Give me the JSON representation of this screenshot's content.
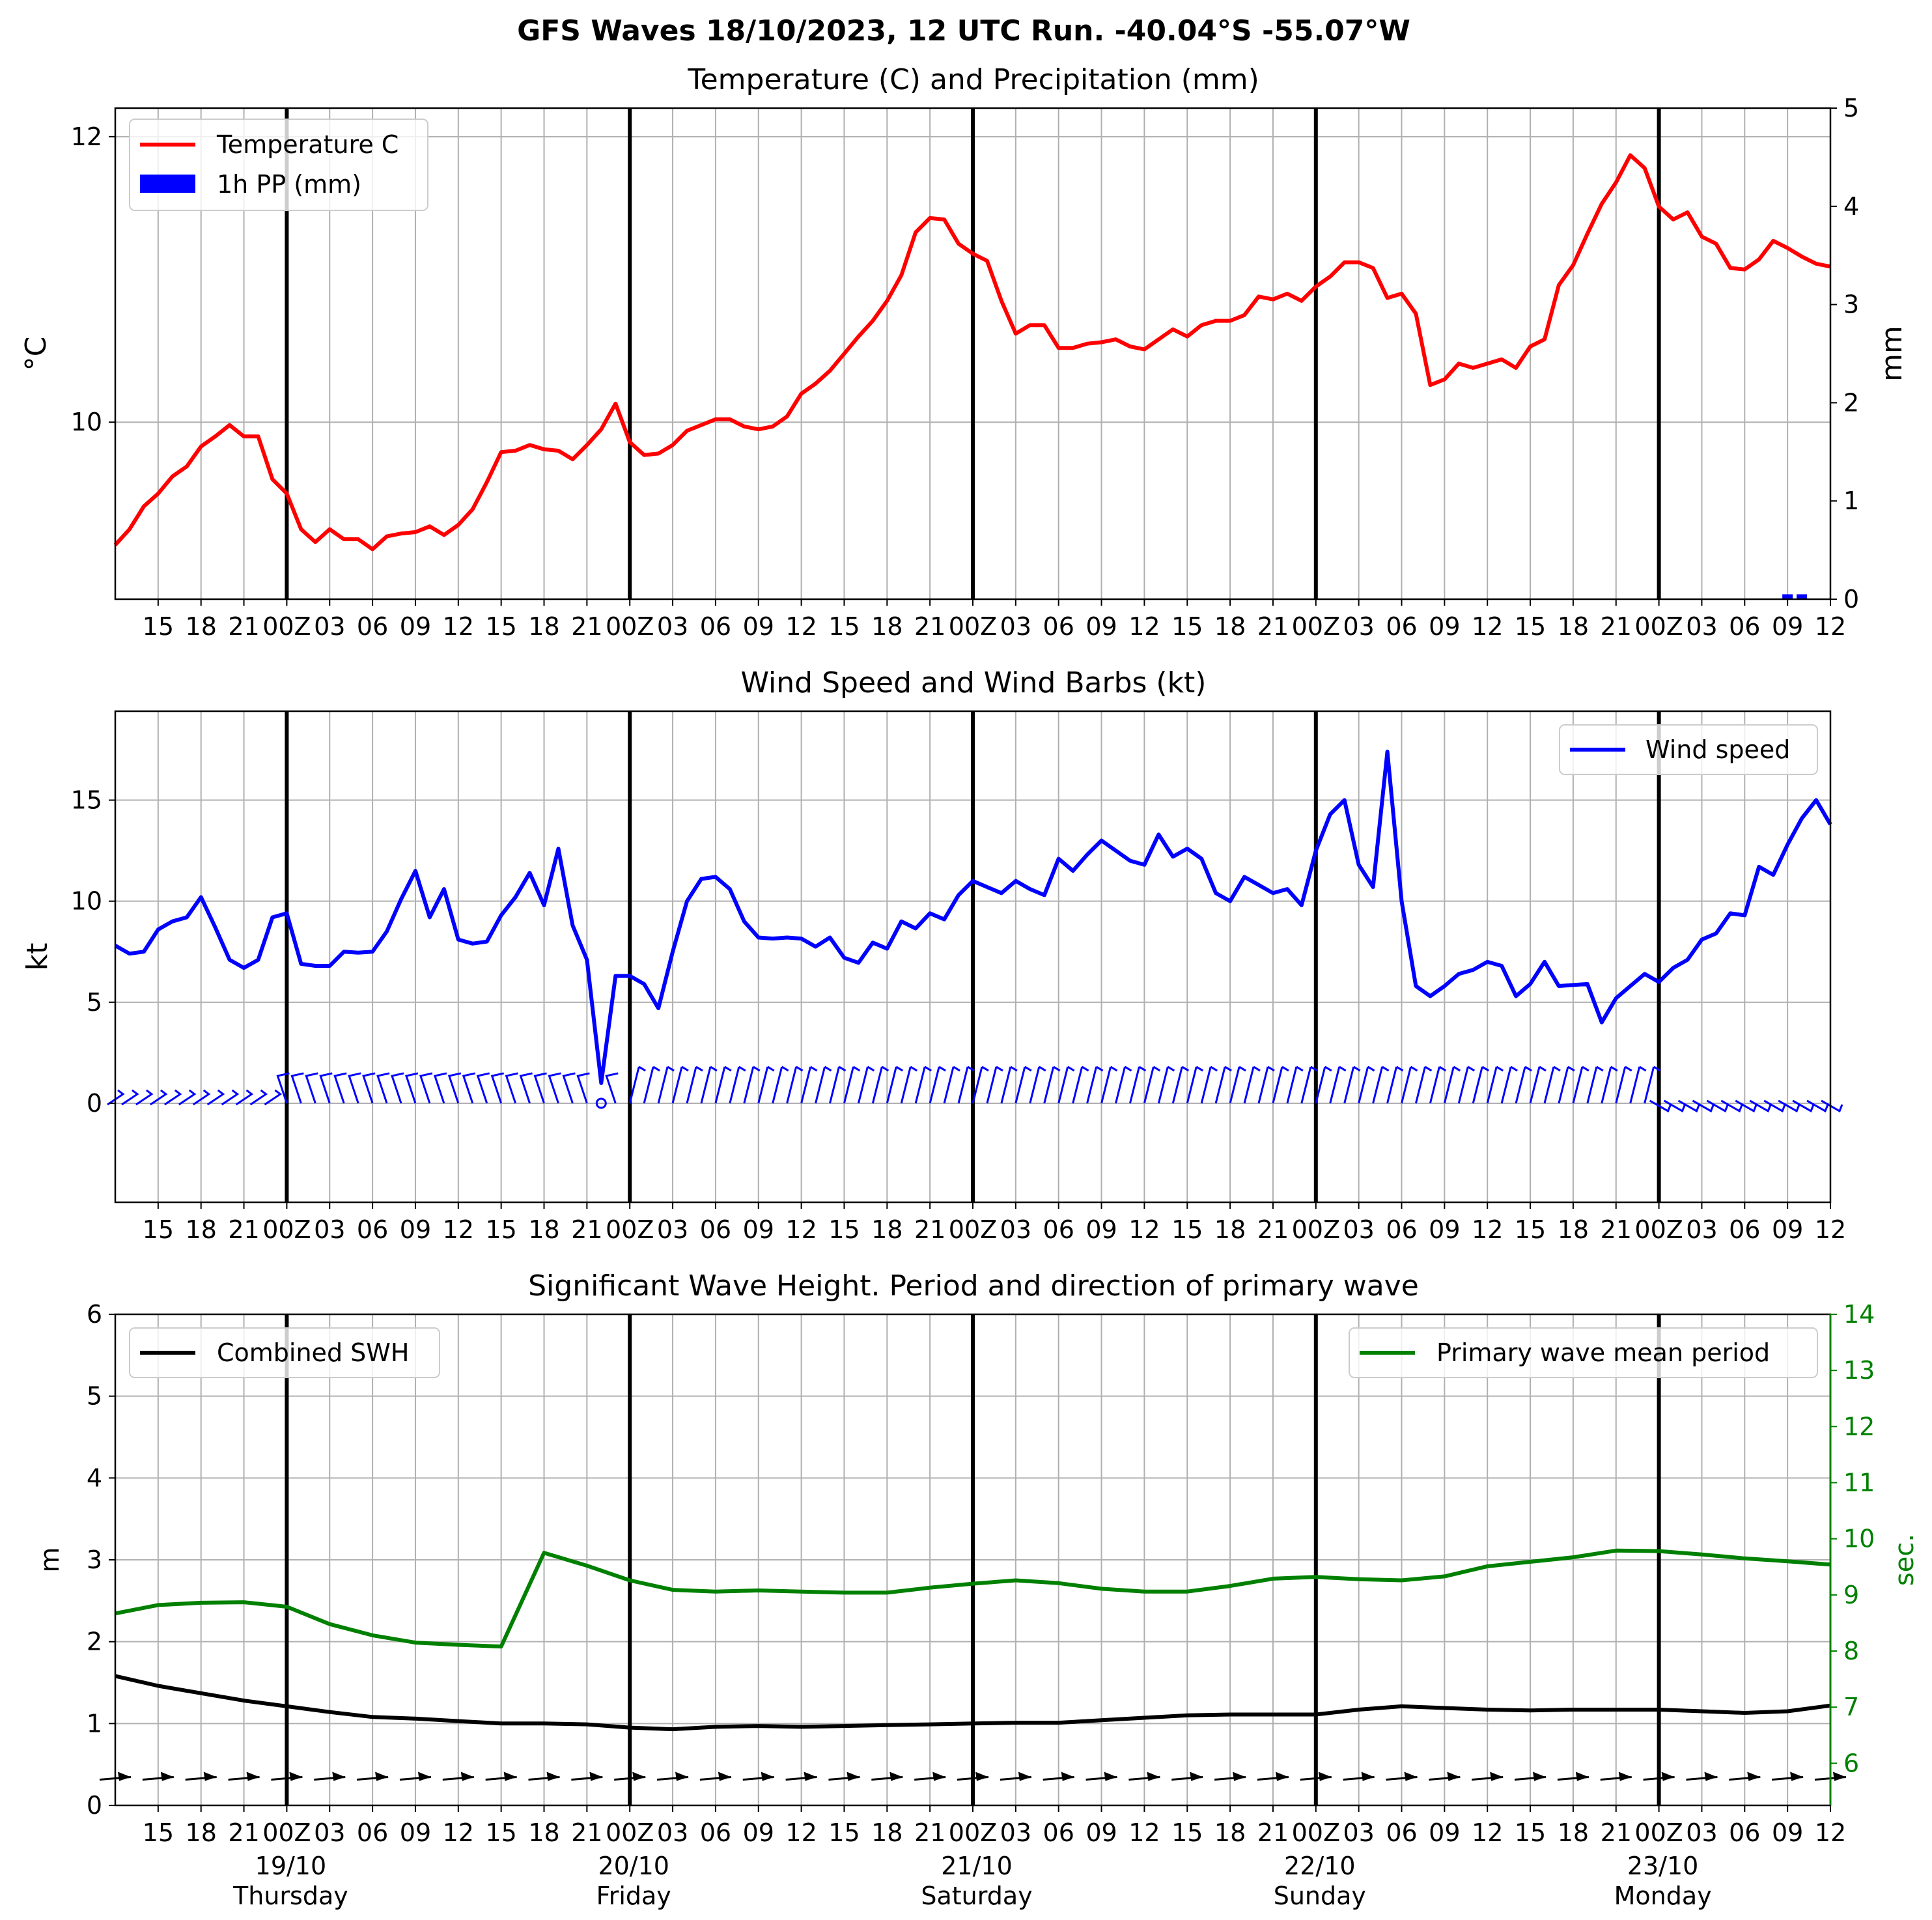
{
  "suptitle": "GFS Waves 18/10/2023, 12 UTC Run. -40.04°S -55.07°W",
  "colors": {
    "temp": "#ff0000",
    "precip": "#0000ff",
    "wind": "#0000ff",
    "swh": "#000000",
    "period": "#008000",
    "grid": "#b0b0b0"
  },
  "x_tick_labels": [
    "15",
    "18",
    "21",
    "00Z",
    "03",
    "06",
    "09",
    "12",
    "15",
    "18",
    "21",
    "00Z",
    "03",
    "06",
    "09",
    "12",
    "15",
    "18",
    "21",
    "00Z",
    "03",
    "06",
    "09",
    "12",
    "15",
    "18",
    "21",
    "00Z",
    "03",
    "06",
    "09",
    "12",
    "15",
    "18",
    "21",
    "00Z",
    "03",
    "06",
    "09",
    "12"
  ],
  "day_labels": [
    {
      "date": "19/10",
      "weekday": "Thursday"
    },
    {
      "date": "20/10",
      "weekday": "Friday"
    },
    {
      "date": "21/10",
      "weekday": "Saturday"
    },
    {
      "date": "22/10",
      "weekday": "Sunday"
    },
    {
      "date": "23/10",
      "weekday": "Monday"
    }
  ],
  "chart_data": [
    {
      "type": "line",
      "title": "Temperature (C) and Precipitation (mm)",
      "ylabel": "$^\\circ$C",
      "ylabel_right": "mm",
      "ylim": [
        8.76,
        12.2
      ],
      "ylim_right": [
        0,
        5
      ],
      "yticks": [
        "10",
        "12"
      ],
      "yticks_right": [
        "0",
        "1",
        "2",
        "3",
        "4",
        "5"
      ],
      "legend_position": "upper left",
      "xrange_hours": [
        0,
        120
      ],
      "series": [
        {
          "name": "Temperature C",
          "x": [
            0,
            1,
            2,
            3,
            4,
            5,
            6,
            7,
            8,
            9,
            10,
            11,
            12,
            13,
            14,
            15,
            16,
            17,
            18,
            19,
            20,
            21,
            22,
            23,
            24,
            25,
            26,
            27,
            28,
            29,
            30,
            31,
            32,
            33,
            34,
            35,
            36,
            37,
            38,
            39,
            40,
            41,
            42,
            43,
            44,
            45,
            46,
            47,
            48,
            49,
            50,
            51,
            52,
            53,
            54,
            55,
            56,
            57,
            58,
            59,
            60,
            61,
            62,
            63,
            64,
            65,
            66,
            67,
            68,
            69,
            70,
            71,
            72,
            73,
            74,
            75,
            76,
            77,
            78,
            79,
            80,
            81,
            82,
            83,
            84,
            85,
            86,
            87,
            88,
            89,
            90,
            91,
            92,
            93,
            94,
            95,
            96,
            97,
            98,
            99,
            100,
            101,
            102,
            103,
            104,
            105,
            106,
            107,
            108,
            109,
            110,
            111,
            112,
            113,
            114,
            115,
            116,
            117,
            118,
            119,
            120
          ],
          "values": [
            9.14,
            9.25,
            9.41,
            9.5,
            9.62,
            9.69,
            9.83,
            9.9,
            9.98,
            9.9,
            9.9,
            9.6,
            9.5,
            9.25,
            9.16,
            9.25,
            9.18,
            9.18,
            9.11,
            9.2,
            9.22,
            9.23,
            9.27,
            9.21,
            9.28,
            9.39,
            9.58,
            9.79,
            9.8,
            9.84,
            9.81,
            9.8,
            9.74,
            9.84,
            9.95,
            10.13,
            9.86,
            9.77,
            9.78,
            9.84,
            9.94,
            9.98,
            10.02,
            10.02,
            9.97,
            9.95,
            9.97,
            10.04,
            10.2,
            10.27,
            10.36,
            10.48,
            10.6,
            10.71,
            10.85,
            11.03,
            11.33,
            11.43,
            11.42,
            11.25,
            11.18,
            11.13,
            10.85,
            10.62,
            10.68,
            10.68,
            10.52,
            10.52,
            10.55,
            10.56,
            10.58,
            10.53,
            10.51,
            10.58,
            10.65,
            10.6,
            10.68,
            10.71,
            10.71,
            10.75,
            10.88,
            10.86,
            10.9,
            10.85,
            10.95,
            11.02,
            11.12,
            11.12,
            11.08,
            10.87,
            10.9,
            10.76,
            10.26,
            10.3,
            10.41,
            10.38,
            10.41,
            10.44,
            10.38,
            10.53,
            10.58,
            10.96,
            11.1,
            11.32,
            11.53,
            11.68,
            11.87,
            11.78,
            11.51,
            11.42,
            11.47,
            11.3,
            11.25,
            11.08,
            11.07,
            11.14,
            11.27,
            11.22,
            11.16,
            11.11,
            11.09
          ]
        },
        {
          "name": "1h PP (mm)",
          "x": [
            117,
            118
          ],
          "values": [
            0.05,
            0.05
          ]
        }
      ]
    },
    {
      "type": "line",
      "title": "Wind Speed and Wind Barbs (kt)",
      "ylabel": "kt",
      "ylim": [
        -4.9,
        19.4
      ],
      "yticks": [
        "0",
        "5",
        "10",
        "15"
      ],
      "legend_position": "upper right",
      "xrange_hours": [
        0,
        120
      ],
      "series": [
        {
          "name": "Wind speed",
          "x": [
            0,
            1,
            2,
            3,
            4,
            5,
            6,
            7,
            8,
            9,
            10,
            11,
            12,
            13,
            14,
            15,
            16,
            17,
            18,
            19,
            20,
            21,
            22,
            23,
            24,
            25,
            26,
            27,
            28,
            29,
            30,
            31,
            32,
            33,
            34,
            35,
            36,
            37,
            38,
            39,
            40,
            41,
            42,
            43,
            44,
            45,
            46,
            47,
            48,
            49,
            50,
            51,
            52,
            53,
            54,
            55,
            56,
            57,
            58,
            59,
            60,
            61,
            62,
            63,
            64,
            65,
            66,
            67,
            68,
            69,
            70,
            71,
            72,
            73,
            74,
            75,
            76,
            77,
            78,
            79,
            80,
            81,
            82,
            83,
            84,
            85,
            86,
            87,
            88,
            89,
            90,
            91,
            92,
            93,
            94,
            95,
            96,
            97,
            98,
            99,
            100,
            101,
            102,
            103,
            104,
            105,
            106,
            107,
            108,
            109,
            110,
            111,
            112,
            113,
            114,
            115,
            116,
            117,
            118,
            119,
            120
          ],
          "values": [
            7.8,
            7.4,
            7.5,
            8.6,
            9.0,
            9.2,
            10.2,
            8.7,
            7.1,
            6.7,
            7.1,
            9.2,
            9.4,
            6.9,
            6.8,
            6.8,
            7.5,
            7.45,
            7.5,
            8.5,
            10.1,
            11.5,
            9.2,
            10.6,
            8.1,
            7.9,
            8.0,
            9.3,
            10.2,
            11.4,
            9.8,
            12.6,
            8.8,
            7.1,
            1.0,
            6.3,
            6.3,
            5.9,
            4.7,
            7.5,
            10.0,
            11.1,
            11.2,
            10.6,
            9.0,
            8.2,
            8.15,
            8.2,
            8.15,
            7.75,
            8.2,
            7.2,
            6.95,
            7.95,
            7.65,
            9.0,
            8.65,
            9.4,
            9.1,
            10.3,
            11.0,
            10.7,
            10.4,
            11.0,
            10.6,
            10.3,
            12.1,
            11.5,
            12.3,
            13.0,
            12.5,
            12.0,
            11.8,
            13.3,
            12.2,
            12.6,
            12.1,
            10.4,
            10.0,
            11.2,
            10.8,
            10.4,
            10.6,
            9.8,
            12.5,
            14.3,
            15.0,
            11.8,
            10.7,
            17.4,
            10.0,
            5.8,
            5.3,
            5.8,
            6.4,
            6.6,
            7.0,
            6.8,
            5.3,
            5.9,
            7.0,
            5.8,
            5.85,
            5.9,
            4.0,
            5.2,
            5.8,
            6.4,
            6.0,
            6.7,
            7.1,
            8.1,
            8.4,
            9.4,
            9.3,
            11.7,
            11.3,
            12.8,
            14.1,
            15.0,
            13.8
          ]
        }
      ]
    },
    {
      "type": "line",
      "title": "Significant Wave Height. Period and direction of primary wave",
      "ylabel": "m",
      "ylabel_right": "sec.",
      "ylim": [
        0,
        6
      ],
      "ylim_right": [
        5.25,
        14
      ],
      "yticks": [
        "0",
        "1",
        "2",
        "3",
        "4",
        "5",
        "6"
      ],
      "yticks_right": [
        "6",
        "7",
        "8",
        "9",
        "10",
        "11",
        "12",
        "13",
        "14"
      ],
      "xrange_hours": [
        0,
        120
      ],
      "series": [
        {
          "name": "Combined SWH",
          "x": [
            0,
            3,
            6,
            9,
            12,
            15,
            18,
            21,
            24,
            27,
            30,
            33,
            36,
            39,
            42,
            45,
            48,
            51,
            54,
            57,
            60,
            63,
            66,
            69,
            72,
            75,
            78,
            81,
            84,
            87,
            90,
            93,
            96,
            99,
            102,
            105,
            108,
            111,
            114,
            117,
            120
          ],
          "values": [
            1.58,
            1.46,
            1.37,
            1.28,
            1.21,
            1.14,
            1.08,
            1.06,
            1.03,
            1.0,
            1.0,
            0.99,
            0.95,
            0.93,
            0.96,
            0.97,
            0.96,
            0.97,
            0.98,
            0.99,
            1.0,
            1.01,
            1.01,
            1.04,
            1.07,
            1.1,
            1.11,
            1.11,
            1.11,
            1.17,
            1.21,
            1.19,
            1.17,
            1.16,
            1.17,
            1.17,
            1.17,
            1.15,
            1.13,
            1.15,
            1.22
          ]
        },
        {
          "name": "Primary wave mean period",
          "axis": "right",
          "x": [
            0,
            3,
            6,
            9,
            12,
            15,
            18,
            21,
            24,
            27,
            30,
            33,
            36,
            39,
            42,
            45,
            48,
            51,
            54,
            57,
            60,
            63,
            66,
            69,
            72,
            75,
            78,
            81,
            84,
            87,
            90,
            93,
            96,
            99,
            102,
            105,
            108,
            111,
            114,
            117,
            120
          ],
          "values": [
            8.67,
            8.82,
            8.86,
            8.87,
            8.79,
            8.48,
            8.28,
            8.15,
            8.11,
            8.08,
            9.75,
            9.52,
            9.26,
            9.09,
            9.06,
            9.08,
            9.06,
            9.04,
            9.04,
            9.13,
            9.2,
            9.26,
            9.21,
            9.11,
            9.06,
            9.06,
            9.16,
            9.29,
            9.32,
            9.28,
            9.26,
            9.33,
            9.51,
            9.59,
            9.67,
            9.79,
            9.78,
            9.72,
            9.65,
            9.6,
            9.54
          ]
        }
      ]
    }
  ]
}
